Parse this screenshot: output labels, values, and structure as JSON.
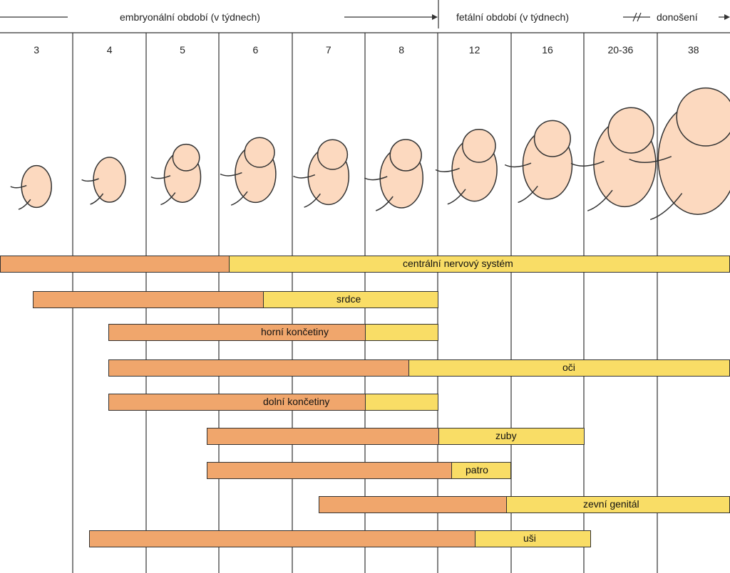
{
  "header": {
    "embryonic_label": "embryonální období (v týdnech)",
    "fetal_label": "fetální období (v týdnech)",
    "term_label": "donošení"
  },
  "weeks": [
    "3",
    "4",
    "5",
    "6",
    "7",
    "8",
    "12",
    "16",
    "20-36",
    "38"
  ],
  "organs": [
    {
      "label": "centrální nervový systém",
      "critical_weeks": "3 – 6",
      "sensitive_weeks": "6 – 38"
    },
    {
      "label": "srdce",
      "critical_weeks": "3 – 6",
      "sensitive_weeks": "6 – 8"
    },
    {
      "label": "horní končetiny",
      "critical_weeks": "4 – 7",
      "sensitive_weeks": "7 – 8"
    },
    {
      "label": "oči",
      "critical_weeks": "4 – 8",
      "sensitive_weeks": "8 – 38"
    },
    {
      "label": "dolní končetiny",
      "critical_weeks": "4 – 7",
      "sensitive_weeks": "7 – 8"
    },
    {
      "label": "zuby",
      "critical_weeks": "6 – 8",
      "sensitive_weeks": "8 – 20-36"
    },
    {
      "label": "patro",
      "critical_weeks": "6 – 8",
      "sensitive_weeks": "8 – 12"
    },
    {
      "label": "zevní genitál",
      "critical_weeks": "7 – 12",
      "sensitive_weeks": "12 – 38"
    },
    {
      "label": "uši",
      "critical_weeks": "4 – 8",
      "sensitive_weeks": "8 – 16"
    }
  ],
  "colors": {
    "critical": "#f0a66c",
    "sensitive": "#f9dd66",
    "embryo_skin": "#fcd9bf",
    "outline": "#333333"
  }
}
